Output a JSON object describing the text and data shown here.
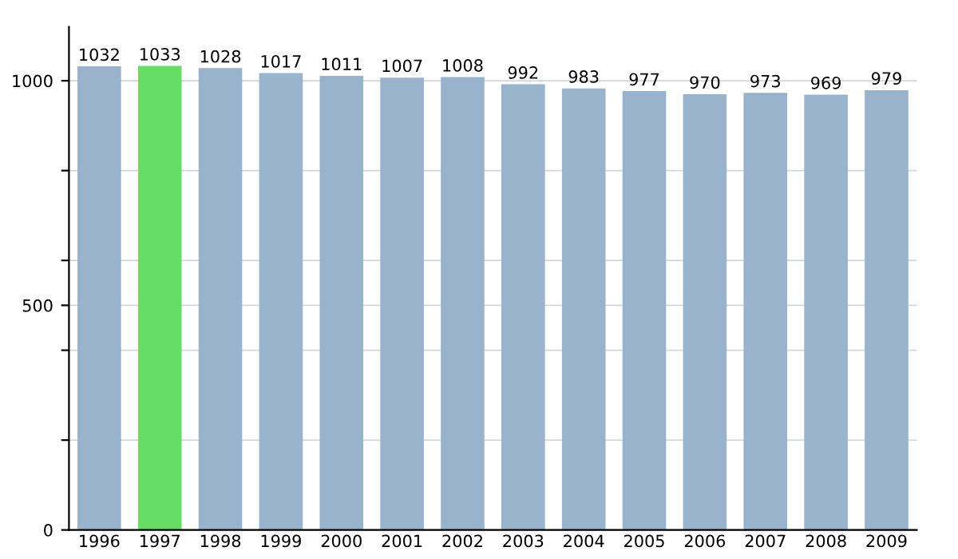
{
  "chart_data": {
    "type": "bar",
    "categories": [
      "1996",
      "1997",
      "1998",
      "1999",
      "2000",
      "2001",
      "2002",
      "2003",
      "2004",
      "2005",
      "2006",
      "2007",
      "2008",
      "2009"
    ],
    "values": [
      1032,
      1033,
      1028,
      1017,
      1011,
      1007,
      1008,
      992,
      983,
      977,
      970,
      973,
      969,
      979
    ],
    "colors": [
      "#9ab3cc",
      "#66dd66",
      "#9ab3cc",
      "#9ab3cc",
      "#9ab3cc",
      "#9ab3cc",
      "#9ab3cc",
      "#9ab3cc",
      "#9ab3cc",
      "#9ab3cc",
      "#9ab3cc",
      "#9ab3cc",
      "#9ab3cc",
      "#9ab3cc"
    ],
    "data_labels": true,
    "ylim": [
      0,
      1120
    ],
    "yticks": [
      0,
      {
        "value": 200,
        "label": null
      },
      {
        "value": 400,
        "label": null
      },
      500,
      {
        "value": 600,
        "label": null
      },
      {
        "value": 800,
        "label": null
      },
      1000
    ],
    "grid": "y",
    "legend": false
  }
}
